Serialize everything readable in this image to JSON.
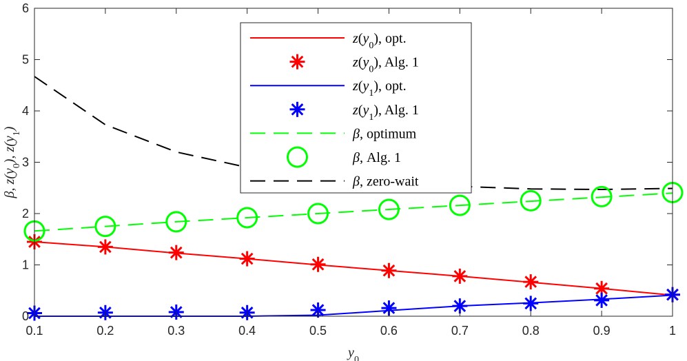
{
  "chart_data": {
    "type": "line",
    "title": "",
    "xlabel": "y_0",
    "ylabel": "β, z(y_0), z(y_1)",
    "xlim": [
      0.1,
      1
    ],
    "ylim": [
      0,
      6
    ],
    "x_ticks": [
      "0.1",
      "0.2",
      "0.3",
      "0.4",
      "0.5",
      "0.6",
      "0.7",
      "0.8",
      "0.9",
      "1"
    ],
    "y_ticks": [
      "0",
      "1",
      "2",
      "3",
      "4",
      "5",
      "6"
    ],
    "grid": false,
    "legend_position": "top-center",
    "x": [
      0.1,
      0.2,
      0.3,
      0.4,
      0.5,
      0.6,
      0.7,
      0.8,
      0.9,
      1.0
    ],
    "series": [
      {
        "name": "z(y0), opt.",
        "style": "line",
        "color": "#ff0000",
        "values": [
          1.45,
          1.35,
          1.23,
          1.12,
          1.0,
          0.89,
          0.78,
          0.66,
          0.54,
          0.41
        ]
      },
      {
        "name": "z(y0), Alg. 1",
        "style": "marker-asterisk",
        "color": "#ff0000",
        "values": [
          1.45,
          1.35,
          1.24,
          1.12,
          1.01,
          0.89,
          0.78,
          0.67,
          0.54,
          0.42
        ]
      },
      {
        "name": "z(y1), opt.",
        "style": "line",
        "color": "#0000ff",
        "values": [
          0.0,
          0.0,
          0.0,
          0.0,
          0.02,
          0.11,
          0.2,
          0.26,
          0.33,
          0.41
        ]
      },
      {
        "name": "z(y1), Alg. 1",
        "style": "marker-asterisk",
        "color": "#0000ff",
        "values": [
          0.06,
          0.07,
          0.08,
          0.07,
          0.12,
          0.16,
          0.2,
          0.25,
          0.31,
          0.42
        ]
      },
      {
        "name": "β, optimum",
        "style": "dashed",
        "color": "#00ff00",
        "values": [
          1.66,
          1.75,
          1.84,
          1.92,
          2.0,
          2.08,
          2.16,
          2.24,
          2.32,
          2.4
        ]
      },
      {
        "name": "β, Alg. 1",
        "style": "marker-circle",
        "color": "#00ff00",
        "values": [
          1.66,
          1.75,
          1.84,
          1.92,
          2.0,
          2.08,
          2.16,
          2.25,
          2.33,
          2.41
        ]
      },
      {
        "name": "β, zero-wait",
        "style": "dashed",
        "color": "#000000",
        "values": [
          4.67,
          3.73,
          3.2,
          2.9,
          2.71,
          2.6,
          2.53,
          2.48,
          2.47,
          2.49
        ]
      }
    ],
    "legend": [
      {
        "sym": "z",
        "arg": "y",
        "sub": "0",
        "tail": ", opt."
      },
      {
        "sym": "z",
        "arg": "y",
        "sub": "0",
        "tail": ", Alg. 1"
      },
      {
        "sym": "z",
        "arg": "y",
        "sub": "1",
        "tail": ", opt."
      },
      {
        "sym": "z",
        "arg": "y",
        "sub": "1",
        "tail": ", Alg. 1"
      },
      {
        "sym": "β",
        "tail": ", optimum"
      },
      {
        "sym": "β",
        "tail": ", Alg. 1"
      },
      {
        "sym": "β",
        "tail": ", zero-wait"
      }
    ]
  }
}
